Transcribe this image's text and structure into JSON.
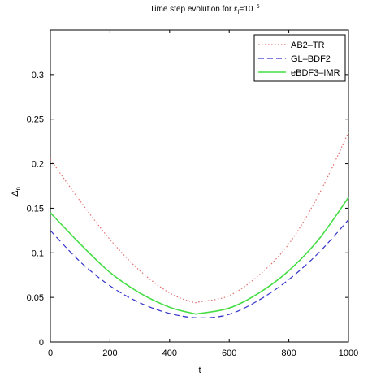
{
  "chart_data": {
    "type": "line",
    "title_main": "Time step evolution for ε",
    "title_sub": "f",
    "title_eq": "=10",
    "title_exp": "−5",
    "xlabel": "t",
    "ylabel_main": "Δ",
    "ylabel_sub": "n",
    "xlim": [
      0,
      1000
    ],
    "ylim": [
      0,
      0.35
    ],
    "x_ticks": [
      {
        "value": 0,
        "label": "0"
      },
      {
        "value": 200,
        "label": "200"
      },
      {
        "value": 400,
        "label": "400"
      },
      {
        "value": 600,
        "label": "600"
      },
      {
        "value": 800,
        "label": "800"
      },
      {
        "value": 1000,
        "label": "1000"
      }
    ],
    "y_ticks": [
      {
        "value": 0,
        "label": "0"
      },
      {
        "value": 0.05,
        "label": "0.05"
      },
      {
        "value": 0.1,
        "label": "0.1"
      },
      {
        "value": 0.15,
        "label": "0.15"
      },
      {
        "value": 0.2,
        "label": "0.2"
      },
      {
        "value": 0.25,
        "label": "0.25"
      },
      {
        "value": 0.3,
        "label": "0.3"
      }
    ],
    "grid": false,
    "legend_position": "top-right",
    "series": [
      {
        "name": "AB2–TR",
        "color": "#e07070",
        "style": "dotted",
        "x": [
          0,
          100,
          200,
          300,
          400,
          475,
          500,
          600,
          700,
          800,
          900,
          1000
        ],
        "y": [
          0.205,
          0.158,
          0.115,
          0.08,
          0.055,
          0.045,
          0.045,
          0.052,
          0.075,
          0.11,
          0.165,
          0.235
        ]
      },
      {
        "name": "GL–BDF2",
        "color": "#3333cc",
        "style": "dashed",
        "x": [
          0,
          100,
          200,
          300,
          400,
          500,
          600,
          700,
          800,
          900,
          1000
        ],
        "y": [
          0.125,
          0.09,
          0.063,
          0.044,
          0.032,
          0.027,
          0.031,
          0.047,
          0.07,
          0.1,
          0.137
        ]
      },
      {
        "name": "eBDF3–IMR",
        "color": "#44dd44",
        "style": "solid",
        "x": [
          0,
          100,
          200,
          300,
          400,
          480,
          500,
          600,
          700,
          800,
          900,
          1000
        ],
        "y": [
          0.145,
          0.11,
          0.078,
          0.055,
          0.039,
          0.032,
          0.032,
          0.038,
          0.055,
          0.08,
          0.115,
          0.162
        ]
      }
    ]
  }
}
